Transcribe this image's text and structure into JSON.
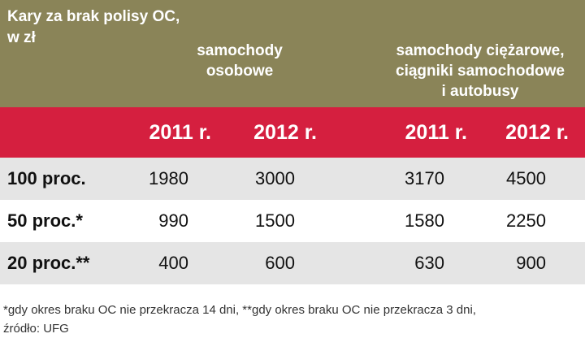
{
  "header": {
    "title_line1": "Kary za brak polisy OC,",
    "title_line2": "w zł",
    "group1_line1": "samochody",
    "group1_line2": "osobowe",
    "group2_line1": "samochody ciężarowe,",
    "group2_line2": "ciągniki samochodowe",
    "group2_line3": "i autobusy"
  },
  "years": [
    "2011 r.",
    "2012 r.",
    "2011 r.",
    "2012 r."
  ],
  "rows": [
    {
      "label": "100 proc.",
      "values": [
        "1980",
        "3000",
        "3170",
        "4500"
      ]
    },
    {
      "label": "50 proc.*",
      "values": [
        "990",
        "1500",
        "1580",
        "2250"
      ]
    },
    {
      "label": "20 proc.**",
      "values": [
        "400",
        "600",
        "630",
        "900"
      ]
    }
  ],
  "footer": {
    "note_line1": "*gdy okres braku OC nie przekracza 14 dni, **gdy okres braku OC nie przekracza 3 dni,",
    "note_line2": "źródło: UFG"
  },
  "colors": {
    "header_bg": "#8a8458",
    "years_bg": "#d51f3f",
    "row_shade": "#e5e5e5"
  }
}
